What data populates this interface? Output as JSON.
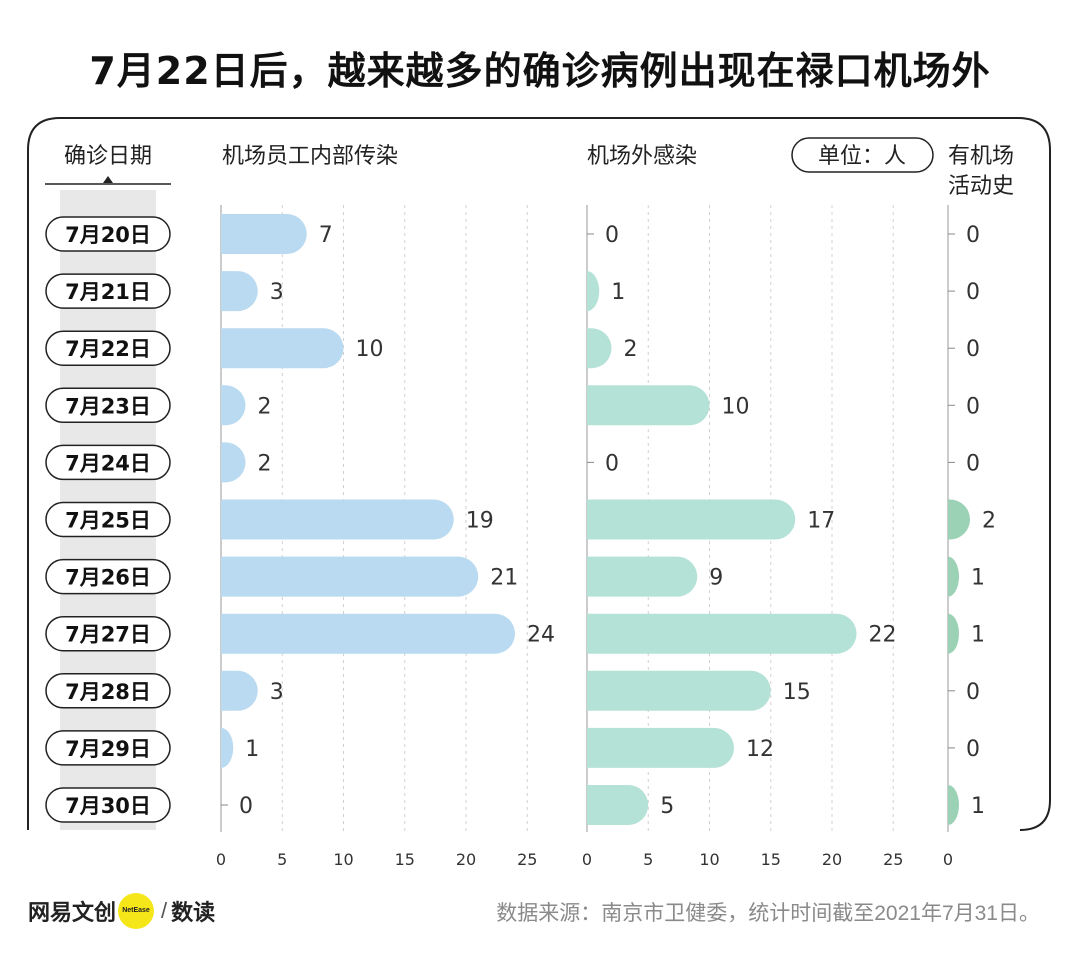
{
  "title": "7月22日后，越来越多的确诊病例出现在禄口机场外",
  "headers": {
    "date_col": "确诊日期",
    "panel1": "机场员工内部传染",
    "panel2": "机场外感染",
    "unit": "单位：人",
    "panel3_line1": "有机场",
    "panel3_line2": "活动史"
  },
  "footer": {
    "logo_text": "网易文创",
    "logo_badge": "NetEase",
    "logo_sep": "/",
    "logo_suffix": "数读",
    "source": "数据来源：南京市卫健委，统计时间截至2021年7月31日。"
  },
  "colors": {
    "panel1_bar": "#b9daf0",
    "panel2_bar": "#b4e2d6",
    "panel3_bar": "#9bd1b5",
    "axis": "#bbbbbb",
    "date_band": "#e8e8e8"
  },
  "chart_data": {
    "type": "bar",
    "orientation": "horizontal",
    "categories": [
      "7月20日",
      "7月21日",
      "7月22日",
      "7月23日",
      "7月24日",
      "7月25日",
      "7月26日",
      "7月27日",
      "7月28日",
      "7月29日",
      "7月30日"
    ],
    "series": [
      {
        "name": "机场员工内部传染",
        "values": [
          7,
          3,
          10,
          2,
          2,
          19,
          21,
          24,
          3,
          1,
          0
        ]
      },
      {
        "name": "机场外感染",
        "values": [
          0,
          1,
          2,
          10,
          0,
          17,
          9,
          22,
          15,
          12,
          5
        ]
      },
      {
        "name": "有机场活动史",
        "values": [
          0,
          0,
          0,
          0,
          0,
          2,
          1,
          1,
          0,
          0,
          1
        ]
      }
    ],
    "xlim": [
      0,
      25
    ],
    "xticks": [
      0,
      5,
      10,
      15,
      20,
      25
    ],
    "third_panel_xticks": [
      0
    ],
    "grid": true,
    "unit": "单位：人"
  }
}
